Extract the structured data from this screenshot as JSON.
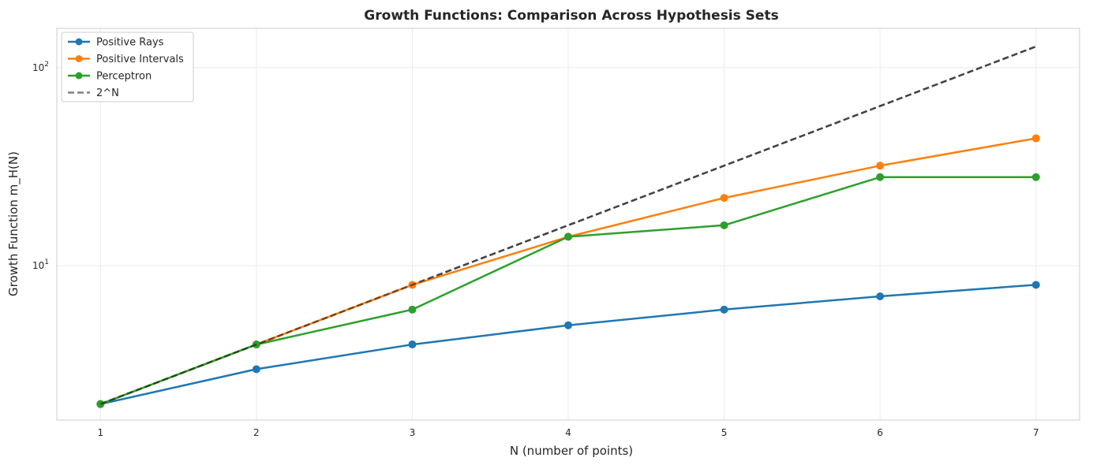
{
  "chart_data": {
    "type": "line",
    "title": "Growth Functions: Comparison Across Hypothesis Sets",
    "xlabel": "N (number of points)",
    "ylabel": "Growth Function m_H(N)",
    "yscale": "log",
    "xlim": [
      0.72,
      7.28
    ],
    "ylim": [
      1.66,
      158
    ],
    "x": [
      1,
      2,
      3,
      4,
      5,
      6,
      7
    ],
    "x_ticks": [
      "1",
      "2",
      "3",
      "4",
      "5",
      "6",
      "7"
    ],
    "y_ticks": [
      {
        "value": 10,
        "base": "10",
        "exp": "1"
      },
      {
        "value": 100,
        "base": "10",
        "exp": "2"
      }
    ],
    "grid": true,
    "legend_position": "top-left",
    "series": [
      {
        "name": "Positive Rays",
        "color": "#1f77b4",
        "style": "solid",
        "marker": true,
        "values": [
          2,
          3,
          4,
          5,
          6,
          7,
          8
        ]
      },
      {
        "name": "Positive Intervals",
        "color": "#ff7f0e",
        "style": "solid",
        "marker": true,
        "values": [
          2,
          4,
          8,
          14,
          22,
          32,
          44
        ]
      },
      {
        "name": "Perceptron",
        "color": "#2ca02c",
        "style": "solid",
        "marker": true,
        "values": [
          2,
          4,
          6,
          14,
          16,
          28,
          28
        ]
      },
      {
        "name": "2^N",
        "color": "#808080",
        "style": "dashed",
        "marker": false,
        "values": [
          2,
          4,
          8,
          16,
          32,
          64,
          128
        ]
      }
    ]
  }
}
